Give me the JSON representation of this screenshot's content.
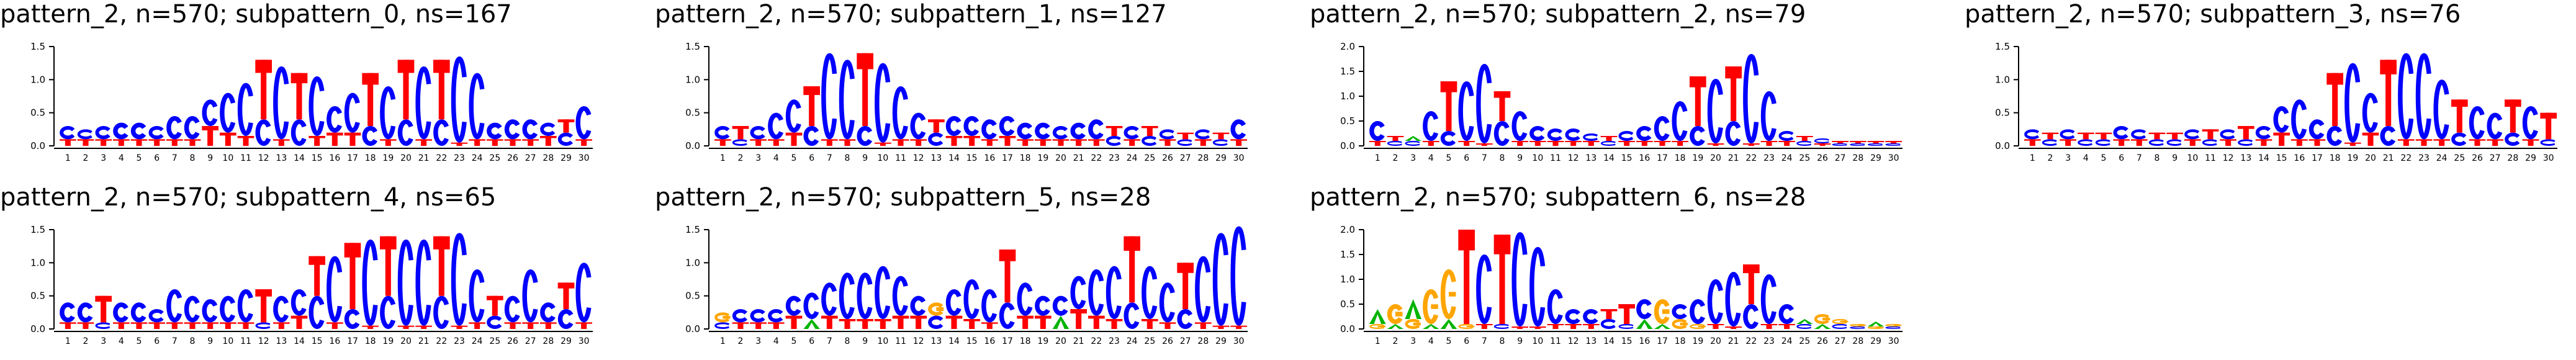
{
  "colors": {
    "A": "#00b400",
    "C": "#0000ff",
    "G": "#ffa500",
    "T": "#ff0000"
  },
  "chart_data": [
    {
      "type": "sequence-logo",
      "title": "pattern_2, n=570; subpattern_0, ns=167",
      "ylim": [
        0,
        1.5
      ],
      "yticks": [
        "0.0",
        "0.5",
        "1.0",
        "1.5"
      ],
      "positions": [
        "1",
        "2",
        "3",
        "4",
        "5",
        "6",
        "7",
        "8",
        "9",
        "10",
        "11",
        "12",
        "13",
        "14",
        "15",
        "16",
        "17",
        "18",
        "19",
        "20",
        "21",
        "22",
        "23",
        "24",
        "25",
        "26",
        "27",
        "28",
        "29",
        "30"
      ],
      "columns": [
        {
          "C": 0.2,
          "T": 0.1
        },
        {
          "C": 0.15,
          "T": 0.1
        },
        {
          "C": 0.2,
          "T": 0.1
        },
        {
          "C": 0.25,
          "T": 0.1
        },
        {
          "C": 0.25,
          "T": 0.1
        },
        {
          "C": 0.2,
          "T": 0.1
        },
        {
          "C": 0.35,
          "T": 0.1
        },
        {
          "C": 0.35,
          "T": 0.1
        },
        {
          "C": 0.4,
          "T": 0.3
        },
        {
          "C": 0.6,
          "T": 0.2
        },
        {
          "C": 0.8,
          "T": 0.15
        },
        {
          "C": 0.4,
          "T": 0.9
        },
        {
          "C": 1.1,
          "T": 0.1
        },
        {
          "C": 0.4,
          "T": 0.7
        },
        {
          "C": 0.9,
          "T": 0.15
        },
        {
          "C": 0.4,
          "T": 0.2
        },
        {
          "C": 0.6,
          "T": 0.2
        },
        {
          "C": 0.3,
          "T": 0.8
        },
        {
          "C": 0.8,
          "T": 0.1
        },
        {
          "C": 0.4,
          "T": 0.9
        },
        {
          "C": 1.1,
          "T": 0.1
        },
        {
          "C": 0.4,
          "T": 0.9
        },
        {
          "C": 1.3,
          "T": 0.05
        },
        {
          "C": 1.0,
          "T": 0.1
        },
        {
          "C": 0.25,
          "T": 0.1
        },
        {
          "C": 0.3,
          "T": 0.1
        },
        {
          "C": 0.3,
          "T": 0.1
        },
        {
          "C": 0.2,
          "T": 0.15
        },
        {
          "C": 0.2,
          "T": 0.2
        },
        {
          "C": 0.5,
          "T": 0.1
        }
      ]
    },
    {
      "type": "sequence-logo",
      "title": "pattern_2, n=570; subpattern_1, ns=127",
      "ylim": [
        0,
        1.5
      ],
      "yticks": [
        "0.0",
        "0.5",
        "1.0",
        "1.5"
      ],
      "positions": [
        "1",
        "2",
        "3",
        "4",
        "5",
        "6",
        "7",
        "8",
        "9",
        "10",
        "11",
        "12",
        "13",
        "14",
        "15",
        "16",
        "17",
        "18",
        "19",
        "20",
        "21",
        "22",
        "23",
        "24",
        "25",
        "26",
        "27",
        "28",
        "29",
        "30"
      ],
      "columns": [
        {
          "C": 0.2,
          "T": 0.1
        },
        {
          "C": 0.1,
          "T": 0.2
        },
        {
          "C": 0.2,
          "T": 0.1
        },
        {
          "C": 0.4,
          "T": 0.1
        },
        {
          "C": 0.5,
          "T": 0.2
        },
        {
          "C": 0.3,
          "T": 0.6
        },
        {
          "C": 1.3,
          "T": 0.1
        },
        {
          "C": 1.2,
          "T": 0.1
        },
        {
          "C": 0.3,
          "T": 1.1
        },
        {
          "C": 1.2,
          "T": 0.05
        },
        {
          "C": 0.8,
          "T": 0.1
        },
        {
          "C": 0.4,
          "T": 0.1
        },
        {
          "C": 0.2,
          "T": 0.2
        },
        {
          "C": 0.3,
          "T": 0.15
        },
        {
          "C": 0.3,
          "T": 0.15
        },
        {
          "C": 0.3,
          "T": 0.1
        },
        {
          "C": 0.3,
          "T": 0.15
        },
        {
          "C": 0.25,
          "T": 0.1
        },
        {
          "C": 0.25,
          "T": 0.1
        },
        {
          "C": 0.2,
          "T": 0.1
        },
        {
          "C": 0.25,
          "T": 0.1
        },
        {
          "C": 0.3,
          "T": 0.1
        },
        {
          "C": 0.15,
          "T": 0.15
        },
        {
          "C": 0.2,
          "T": 0.1
        },
        {
          "C": 0.15,
          "T": 0.15
        },
        {
          "C": 0.15,
          "T": 0.1
        },
        {
          "C": 0.1,
          "T": 0.1
        },
        {
          "C": 0.15,
          "T": 0.1
        },
        {
          "C": 0.1,
          "T": 0.1
        },
        {
          "C": 0.3,
          "T": 0.1
        }
      ]
    },
    {
      "type": "sequence-logo",
      "title": "pattern_2, n=570; subpattern_2, ns=79",
      "ylim": [
        0,
        2.0
      ],
      "yticks": [
        "0.0",
        "0.5",
        "1.0",
        "1.5",
        "2.0"
      ],
      "positions": [
        "1",
        "2",
        "3",
        "4",
        "5",
        "6",
        "7",
        "8",
        "9",
        "10",
        "11",
        "12",
        "13",
        "14",
        "15",
        "16",
        "17",
        "18",
        "19",
        "20",
        "21",
        "22",
        "23",
        "24",
        "25",
        "26",
        "27",
        "28",
        "29",
        "30"
      ],
      "columns": [
        {
          "C": 0.4,
          "T": 0.1
        },
        {
          "C": 0.1,
          "T": 0.1
        },
        {
          "C": 0.1,
          "A": 0.1
        },
        {
          "C": 0.6,
          "T": 0.1
        },
        {
          "C": 0.3,
          "T": 1.0
        },
        {
          "C": 1.2,
          "T": 0.1
        },
        {
          "C": 1.6,
          "T": 0.05
        },
        {
          "C": 0.5,
          "T": 0.6
        },
        {
          "C": 0.6,
          "T": 0.1
        },
        {
          "C": 0.3,
          "T": 0.1
        },
        {
          "C": 0.25,
          "T": 0.1
        },
        {
          "C": 0.25,
          "T": 0.1
        },
        {
          "C": 0.15,
          "T": 0.1
        },
        {
          "C": 0.1,
          "T": 0.1
        },
        {
          "C": 0.2,
          "T": 0.1
        },
        {
          "C": 0.3,
          "T": 0.1
        },
        {
          "C": 0.5,
          "T": 0.1
        },
        {
          "C": 0.8,
          "T": 0.1
        },
        {
          "C": 0.4,
          "T": 1.0
        },
        {
          "C": 1.3,
          "T": 0.05
        },
        {
          "C": 0.5,
          "T": 1.1
        },
        {
          "C": 1.8,
          "T": 0.05
        },
        {
          "C": 1.0,
          "T": 0.1
        },
        {
          "C": 0.2,
          "T": 0.1
        },
        {
          "C": 0.1,
          "T": 0.1
        },
        {
          "C": 0.1,
          "T": 0.05
        },
        {
          "C": 0.05,
          "T": 0.05
        },
        {
          "C": 0.05,
          "T": 0.05
        },
        {
          "C": 0.05,
          "T": 0.05
        },
        {
          "C": 0.05,
          "T": 0.05
        }
      ]
    },
    {
      "type": "sequence-logo",
      "title": "pattern_2, n=570; subpattern_3, ns=76",
      "ylim": [
        0,
        1.5
      ],
      "yticks": [
        "0.0",
        "0.5",
        "1.0",
        "1.5"
      ],
      "positions": [
        "1",
        "2",
        "3",
        "4",
        "5",
        "6",
        "7",
        "8",
        "9",
        "10",
        "11",
        "12",
        "13",
        "14",
        "15",
        "16",
        "17",
        "18",
        "19",
        "20",
        "21",
        "22",
        "23",
        "24",
        "25",
        "26",
        "27",
        "28",
        "29",
        "30"
      ],
      "columns": [
        {
          "C": 0.15,
          "T": 0.1
        },
        {
          "C": 0.1,
          "T": 0.1
        },
        {
          "C": 0.15,
          "T": 0.1
        },
        {
          "C": 0.1,
          "T": 0.1
        },
        {
          "C": 0.1,
          "T": 0.1
        },
        {
          "C": 0.2,
          "T": 0.1
        },
        {
          "C": 0.15,
          "T": 0.1
        },
        {
          "C": 0.1,
          "T": 0.1
        },
        {
          "C": 0.1,
          "T": 0.1
        },
        {
          "C": 0.15,
          "T": 0.1
        },
        {
          "C": 0.1,
          "T": 0.15
        },
        {
          "C": 0.15,
          "T": 0.1
        },
        {
          "C": 0.1,
          "T": 0.2
        },
        {
          "C": 0.2,
          "T": 0.1
        },
        {
          "C": 0.4,
          "T": 0.2
        },
        {
          "C": 0.6,
          "T": 0.1
        },
        {
          "C": 0.3,
          "T": 0.1
        },
        {
          "C": 0.3,
          "T": 0.8
        },
        {
          "C": 1.2,
          "T": 0.05
        },
        {
          "C": 0.6,
          "T": 0.2
        },
        {
          "C": 0.3,
          "T": 1.0
        },
        {
          "C": 1.3,
          "T": 0.1
        },
        {
          "C": 1.3,
          "T": 0.1
        },
        {
          "C": 0.9,
          "T": 0.1
        },
        {
          "C": 0.2,
          "T": 0.5
        },
        {
          "C": 0.5,
          "T": 0.1
        },
        {
          "C": 0.4,
          "T": 0.1
        },
        {
          "C": 0.2,
          "T": 0.5
        },
        {
          "C": 0.5,
          "T": 0.1
        },
        {
          "C": 0.1,
          "T": 0.4
        }
      ]
    },
    {
      "type": "sequence-logo",
      "title": "pattern_2, n=570; subpattern_4, ns=65",
      "ylim": [
        0,
        1.5
      ],
      "yticks": [
        "0.0",
        "0.5",
        "1.0",
        "1.5"
      ],
      "positions": [
        "1",
        "2",
        "3",
        "4",
        "5",
        "6",
        "7",
        "8",
        "9",
        "10",
        "11",
        "12",
        "13",
        "14",
        "15",
        "16",
        "17",
        "18",
        "19",
        "20",
        "21",
        "22",
        "23",
        "24",
        "25",
        "26",
        "27",
        "28",
        "29",
        "30"
      ],
      "columns": [
        {
          "C": 0.3,
          "T": 0.1
        },
        {
          "C": 0.3,
          "T": 0.1
        },
        {
          "C": 0.1,
          "T": 0.4
        },
        {
          "C": 0.3,
          "T": 0.1
        },
        {
          "C": 0.3,
          "T": 0.1
        },
        {
          "C": 0.2,
          "T": 0.1
        },
        {
          "C": 0.5,
          "T": 0.1
        },
        {
          "C": 0.4,
          "T": 0.1
        },
        {
          "C": 0.35,
          "T": 0.1
        },
        {
          "C": 0.4,
          "T": 0.1
        },
        {
          "C": 0.5,
          "T": 0.1
        },
        {
          "C": 0.1,
          "T": 0.5
        },
        {
          "C": 0.4,
          "T": 0.1
        },
        {
          "C": 0.4,
          "T": 0.2
        },
        {
          "C": 0.5,
          "T": 0.6
        },
        {
          "C": 1.0,
          "T": 0.1
        },
        {
          "C": 0.3,
          "T": 1.0
        },
        {
          "C": 1.3,
          "T": 0.05
        },
        {
          "C": 0.5,
          "T": 0.9
        },
        {
          "C": 1.3,
          "T": 0.05
        },
        {
          "C": 1.3,
          "T": 0.05
        },
        {
          "C": 0.5,
          "T": 0.9
        },
        {
          "C": 1.4,
          "T": 0.05
        },
        {
          "C": 0.8,
          "T": 0.1
        },
        {
          "C": 0.2,
          "T": 0.3
        },
        {
          "C": 0.4,
          "T": 0.1
        },
        {
          "C": 0.8,
          "T": 0.1
        },
        {
          "C": 0.3,
          "T": 0.1
        },
        {
          "C": 0.3,
          "T": 0.4
        },
        {
          "C": 0.9,
          "T": 0.1
        }
      ]
    },
    {
      "type": "sequence-logo",
      "title": "pattern_2, n=570; subpattern_5, ns=28",
      "ylim": [
        0,
        1.5
      ],
      "yticks": [
        "0.0",
        "0.5",
        "1.0",
        "1.5"
      ],
      "positions": [
        "1",
        "2",
        "3",
        "4",
        "5",
        "6",
        "7",
        "8",
        "9",
        "10",
        "11",
        "12",
        "13",
        "14",
        "15",
        "16",
        "17",
        "18",
        "19",
        "20",
        "21",
        "22",
        "23",
        "24",
        "25",
        "26",
        "27",
        "28",
        "29",
        "30"
      ],
      "columns": [
        {
          "G": 0.15,
          "C": 0.1
        },
        {
          "C": 0.2,
          "T": 0.1
        },
        {
          "C": 0.2,
          "T": 0.1
        },
        {
          "C": 0.2,
          "T": 0.1
        },
        {
          "C": 0.3,
          "T": 0.2
        },
        {
          "C": 0.4,
          "A": 0.15
        },
        {
          "C": 0.5,
          "T": 0.2
        },
        {
          "C": 0.7,
          "T": 0.15
        },
        {
          "C": 0.7,
          "T": 0.15
        },
        {
          "C": 0.8,
          "T": 0.15
        },
        {
          "C": 0.6,
          "T": 0.2
        },
        {
          "C": 0.3,
          "T": 0.2
        },
        {
          "C": 0.2,
          "G": 0.2
        },
        {
          "C": 0.4,
          "T": 0.2
        },
        {
          "C": 0.6,
          "T": 0.15
        },
        {
          "C": 0.5,
          "T": 0.1
        },
        {
          "C": 0.4,
          "T": 0.8
        },
        {
          "C": 0.5,
          "T": 0.2
        },
        {
          "C": 0.3,
          "T": 0.2
        },
        {
          "C": 0.3,
          "A": 0.2
        },
        {
          "C": 0.5,
          "T": 0.3
        },
        {
          "C": 0.7,
          "T": 0.2
        },
        {
          "C": 0.8,
          "T": 0.15
        },
        {
          "C": 0.4,
          "T": 1.0
        },
        {
          "C": 0.8,
          "T": 0.15
        },
        {
          "C": 0.6,
          "T": 0.1
        },
        {
          "C": 0.3,
          "T": 0.7
        },
        {
          "C": 1.0,
          "T": 0.1
        },
        {
          "C": 1.4,
          "T": 0.05
        },
        {
          "C": 1.5,
          "T": 0.05
        }
      ]
    },
    {
      "type": "sequence-logo",
      "title": "pattern_2, n=570; subpattern_6, ns=28",
      "ylim": [
        0,
        2.0
      ],
      "yticks": [
        "0.0",
        "0.5",
        "1.0",
        "1.5",
        "2.0"
      ],
      "positions": [
        "1",
        "2",
        "3",
        "4",
        "5",
        "6",
        "7",
        "8",
        "9",
        "10",
        "11",
        "12",
        "13",
        "14",
        "15",
        "16",
        "17",
        "18",
        "19",
        "20",
        "21",
        "22",
        "23",
        "24",
        "25",
        "26",
        "27",
        "28",
        "29",
        "30"
      ],
      "columns": [
        {
          "A": 0.3,
          "G": 0.1
        },
        {
          "G": 0.4,
          "A": 0.1
        },
        {
          "A": 0.4,
          "G": 0.2
        },
        {
          "G": 0.7,
          "A": 0.1
        },
        {
          "G": 1.0,
          "A": 0.2
        },
        {
          "T": 1.9,
          "G": 0.1
        },
        {
          "C": 1.4,
          "T": 0.1
        },
        {
          "T": 1.8,
          "C": 0.1
        },
        {
          "C": 1.9,
          "T": 0.05
        },
        {
          "C": 1.6,
          "T": 0.05
        },
        {
          "C": 0.7,
          "T": 0.1
        },
        {
          "C": 0.3,
          "T": 0.1
        },
        {
          "C": 0.3,
          "T": 0.1
        },
        {
          "C": 0.2,
          "T": 0.2
        },
        {
          "T": 0.4,
          "C": 0.1
        },
        {
          "C": 0.4,
          "A": 0.2
        },
        {
          "G": 0.5,
          "A": 0.1
        },
        {
          "C": 0.3,
          "G": 0.2
        },
        {
          "C": 0.5,
          "G": 0.1
        },
        {
          "C": 0.9,
          "T": 0.1
        },
        {
          "C": 1.1,
          "T": 0.05
        },
        {
          "C": 0.5,
          "T": 0.8
        },
        {
          "C": 1.0,
          "T": 0.1
        },
        {
          "C": 0.4,
          "T": 0.1
        },
        {
          "C": 0.1,
          "A": 0.1
        },
        {
          "G": 0.2,
          "A": 0.1
        },
        {
          "C": 0.1,
          "G": 0.1
        },
        {
          "C": 0.05,
          "G": 0.05
        },
        {
          "A": 0.1,
          "G": 0.05
        },
        {
          "C": 0.05,
          "G": 0.05
        }
      ]
    }
  ]
}
